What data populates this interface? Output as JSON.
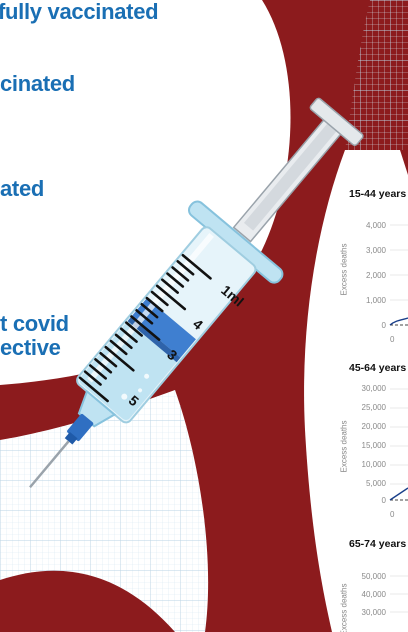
{
  "legend_lines": [
    "fully vaccinated",
    "cinated",
    "ated",
    "t covid",
    "ective"
  ],
  "syringe": {
    "labels": [
      "1ml",
      "4",
      "3",
      "5"
    ]
  },
  "charts": [
    {
      "title": "15-44 years",
      "ylabel": "Excess deaths",
      "yticks": [
        "4,000",
        "3,000",
        "2,000",
        "1,000",
        "0"
      ],
      "xtick": "0"
    },
    {
      "title": "45-64 years",
      "ylabel": "Excess deaths",
      "yticks": [
        "30,000",
        "25,000",
        "20,000",
        "15,000",
        "10,000",
        "5,000",
        "0"
      ],
      "xtick": "0"
    },
    {
      "title": "65-74 years",
      "ylabel": "Excess deaths",
      "yticks": [
        "50,000",
        "40,000",
        "30,000"
      ]
    }
  ],
  "colors": {
    "accent": "#1a6fb4",
    "maroon": "#8c1b1d",
    "grid": "#cfe1ee",
    "liquid": "#bfe3f2",
    "plunger": "#3f7fd0"
  }
}
